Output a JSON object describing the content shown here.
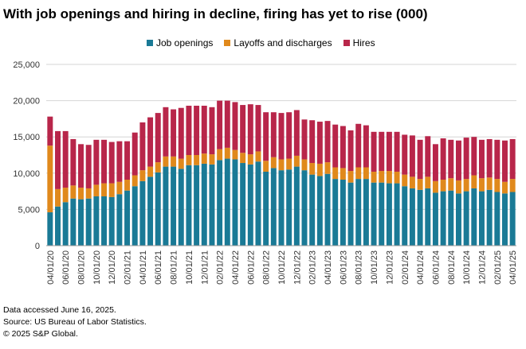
{
  "chart_data": {
    "type": "bar",
    "stacked": true,
    "title": "With job openings and hiring in decline, firing has yet to rise (000)",
    "xlabel": "",
    "ylabel": "",
    "ylim": [
      0,
      25000
    ],
    "yticks": [
      "0",
      "5,000",
      "10,000",
      "15,000",
      "20,000",
      "25,000"
    ],
    "ytick_values": [
      0,
      5000,
      10000,
      15000,
      20000,
      25000
    ],
    "grid": true,
    "legend": "top",
    "categories": [
      "04/01/20",
      "05/01/20",
      "06/01/20",
      "07/01/20",
      "08/01/20",
      "09/01/20",
      "10/01/20",
      "11/01/20",
      "12/01/20",
      "01/01/21",
      "02/01/21",
      "03/01/21",
      "04/01/21",
      "05/01/21",
      "06/01/21",
      "07/01/21",
      "08/01/21",
      "09/01/21",
      "10/01/21",
      "11/01/21",
      "12/01/21",
      "01/01/22",
      "02/01/22",
      "03/01/22",
      "04/01/22",
      "05/01/22",
      "06/01/22",
      "07/01/22",
      "08/01/22",
      "09/01/22",
      "10/01/22",
      "11/01/22",
      "12/01/22",
      "01/01/23",
      "02/01/23",
      "03/01/23",
      "04/01/23",
      "05/01/23",
      "06/01/23",
      "07/01/23",
      "08/01/23",
      "09/01/23",
      "10/01/23",
      "11/01/23",
      "12/01/23",
      "01/01/24",
      "02/01/24",
      "03/01/24",
      "04/01/24",
      "05/01/24",
      "06/01/24",
      "07/01/24",
      "08/01/24",
      "09/01/24",
      "10/01/24",
      "11/01/24",
      "12/01/24",
      "01/01/25",
      "02/01/25",
      "03/01/25",
      "04/01/25"
    ],
    "xtick_labels": [
      "04/01/20",
      "06/01/20",
      "08/01/20",
      "10/01/20",
      "12/01/20",
      "02/01/21",
      "04/01/21",
      "06/01/21",
      "08/01/21",
      "10/01/21",
      "12/01/21",
      "02/01/22",
      "04/01/22",
      "06/01/22",
      "08/01/22",
      "10/01/22",
      "12/01/22",
      "02/01/23",
      "04/01/23",
      "06/01/23",
      "08/01/23",
      "10/01/23",
      "12/01/23",
      "02/01/24",
      "04/01/24",
      "06/01/24",
      "08/01/24",
      "10/01/24",
      "12/01/24",
      "02/01/25",
      "04/01/25"
    ],
    "series": [
      {
        "name": "Job openings",
        "color": "#1a7a96",
        "values": [
          4600,
          5400,
          6000,
          6500,
          6400,
          6500,
          6800,
          6800,
          6700,
          7100,
          7600,
          8200,
          8900,
          9500,
          10100,
          10900,
          10900,
          10600,
          11100,
          11100,
          11300,
          11200,
          11800,
          12000,
          11900,
          11400,
          11200,
          11600,
          10200,
          10700,
          10400,
          10500,
          10900,
          10400,
          9800,
          9600,
          9900,
          9200,
          9100,
          8700,
          9200,
          9200,
          8700,
          8700,
          8600,
          8600,
          8200,
          7900,
          7700,
          7900,
          7300,
          7500,
          7600,
          7200,
          7500,
          7900,
          7500,
          7700,
          7400,
          7200,
          7400
        ]
      },
      {
        "name": "Layoffs and discharges",
        "color": "#e0891c",
        "values": [
          9200,
          2400,
          2000,
          1800,
          1600,
          1400,
          1600,
          1800,
          1900,
          1700,
          1500,
          1500,
          1500,
          1400,
          1400,
          1400,
          1400,
          1400,
          1400,
          1400,
          1400,
          1400,
          1500,
          1500,
          1300,
          1400,
          1400,
          1400,
          1500,
          1500,
          1500,
          1500,
          1500,
          1500,
          1600,
          1700,
          1600,
          1600,
          1600,
          1600,
          1600,
          1600,
          1500,
          1600,
          1700,
          1600,
          1600,
          1600,
          1500,
          1600,
          1600,
          1600,
          1700,
          1800,
          1700,
          1800,
          1800,
          1700,
          1800,
          1600,
          1800
        ]
      },
      {
        "name": "Hires",
        "color": "#b8264a",
        "values": [
          4000,
          8000,
          7800,
          6400,
          6000,
          6000,
          6200,
          6000,
          5700,
          5600,
          5300,
          5900,
          6600,
          6800,
          6800,
          6800,
          6500,
          7000,
          6800,
          6800,
          6600,
          6500,
          6700,
          6500,
          6600,
          6600,
          6900,
          6400,
          6700,
          6200,
          6400,
          6400,
          6300,
          5500,
          5900,
          5800,
          5700,
          5900,
          5800,
          5600,
          6000,
          5800,
          5500,
          5400,
          5400,
          5500,
          5500,
          5700,
          5400,
          5600,
          5100,
          5700,
          5300,
          5500,
          5700,
          5300,
          5300,
          5300,
          5400,
          5700,
          5500
        ]
      }
    ]
  },
  "footnotes": [
    "Data accessed June 16, 2025.",
    "Source: US Bureau of Labor Statistics.",
    "© 2025 S&P Global."
  ]
}
